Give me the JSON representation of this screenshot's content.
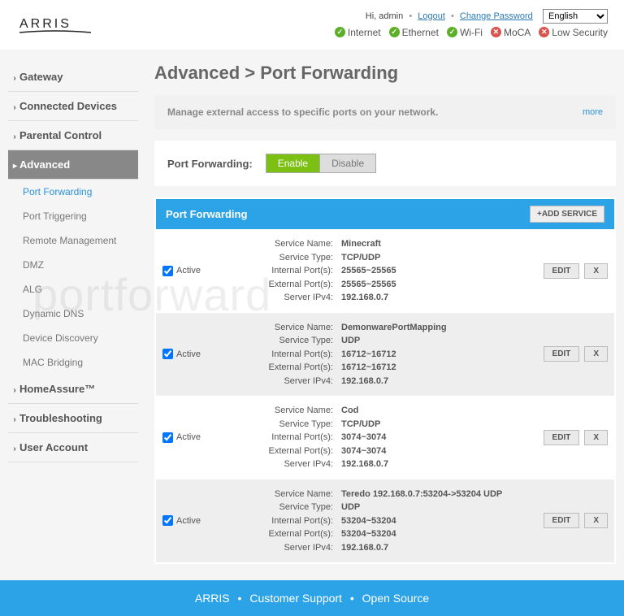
{
  "header": {
    "greeting": "Hi, admin",
    "logout": "Logout",
    "change_pw": "Change Password",
    "language": "English"
  },
  "status": [
    {
      "label": "Internet",
      "ok": true
    },
    {
      "label": "Ethernet",
      "ok": true
    },
    {
      "label": "Wi-Fi",
      "ok": true
    },
    {
      "label": "MoCA",
      "ok": false
    },
    {
      "label": "Low Security",
      "ok": false
    }
  ],
  "nav": {
    "top": [
      "Gateway",
      "Connected Devices",
      "Parental Control"
    ],
    "active": "Advanced",
    "sub": [
      "Port Forwarding",
      "Port Triggering",
      "Remote Management",
      "DMZ",
      "ALG",
      "Dynamic DNS",
      "Device Discovery",
      "MAC Bridging"
    ],
    "sub_selected": "Port Forwarding",
    "bottom": [
      "HomeAssure™",
      "Troubleshooting",
      "User Account"
    ]
  },
  "page": {
    "title": "Advanced > Port Forwarding",
    "desc": "Manage external access to specific ports on your network.",
    "more": "more",
    "toggle_label": "Port Forwarding:",
    "enable": "Enable",
    "disable": "Disable",
    "section_title": "Port Forwarding",
    "add_service": "+ADD SERVICE",
    "labels": {
      "service_name": "Service Name:",
      "service_type": "Service Type:",
      "internal": "Internal Port(s):",
      "external": "External Port(s):",
      "server": "Server IPv4:"
    },
    "active_label": "Active",
    "edit": "EDIT",
    "del": "X"
  },
  "rules": [
    {
      "name": "Minecraft",
      "type": "TCP/UDP",
      "internal": "25565~25565",
      "external": "25565~25565",
      "ip": "192.168.0.7"
    },
    {
      "name": "DemonwarePortMapping",
      "type": "UDP",
      "internal": "16712~16712",
      "external": "16712~16712",
      "ip": "192.168.0.7"
    },
    {
      "name": "Cod",
      "type": "TCP/UDP",
      "internal": "3074~3074",
      "external": "3074~3074",
      "ip": "192.168.0.7"
    },
    {
      "name": "Teredo 192.168.0.7:53204->53204 UDP",
      "type": "UDP",
      "internal": "53204~53204",
      "external": "53204~53204",
      "ip": "192.168.0.7"
    }
  ],
  "footer": {
    "brand": "ARRIS",
    "support": "Customer Support",
    "open_source": "Open Source"
  },
  "watermark": "portforward"
}
